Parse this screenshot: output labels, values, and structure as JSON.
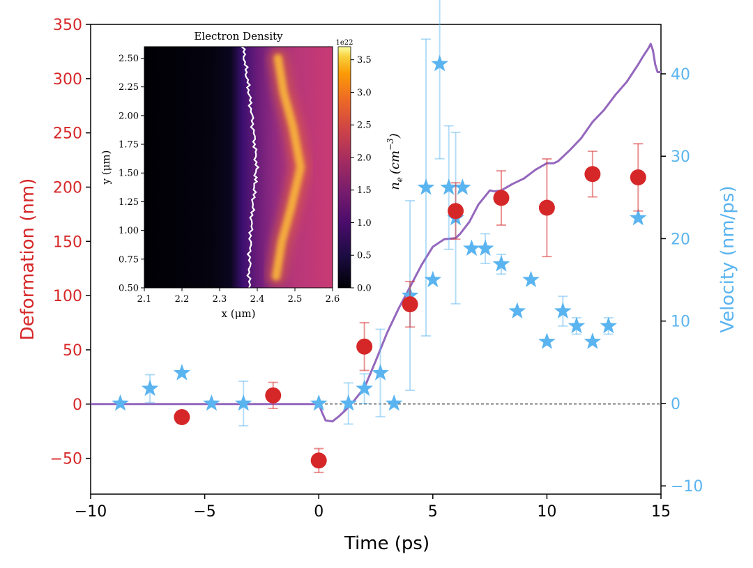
{
  "chart_data": [
    {
      "type": "scatter",
      "xlabel": "Time (ps)",
      "ylabel_left": "Deformation (nm)",
      "ylabel_right": "Velocity (nm/ps)",
      "xlim": [
        -10,
        15
      ],
      "ylim_left": [
        -83,
        350
      ],
      "ylim_right": [
        -11,
        46
      ],
      "x_ticks": [
        -10,
        -5,
        0,
        5,
        10,
        15
      ],
      "y_left_ticks": [
        -50,
        0,
        50,
        100,
        150,
        200,
        250,
        300,
        350
      ],
      "y_right_ticks": [
        -10,
        0,
        10,
        20,
        30,
        40
      ],
      "colors": {
        "deformation": "#d62728",
        "velocity": "#5ab4f0",
        "simulation": "#9467bd",
        "axis_left": "#d62728",
        "axis_right": "#5ab4f0"
      },
      "series": [
        {
          "marker": "circle",
          "axis": "left",
          "points": [
            {
              "x": -6,
              "y": -12,
              "err": 0
            },
            {
              "x": -2,
              "y": 8,
              "err": 12
            },
            {
              "x": 0,
              "y": -52,
              "err": 11
            },
            {
              "x": 2,
              "y": 53,
              "err": 22
            },
            {
              "x": 4,
              "y": 92,
              "err": 21
            },
            {
              "x": 6,
              "y": 178,
              "err": 26
            },
            {
              "x": 8,
              "y": 190,
              "err": 25
            },
            {
              "x": 10,
              "y": 181,
              "err": 45
            },
            {
              "x": 12,
              "y": 212,
              "err": 21
            },
            {
              "x": 14,
              "y": 209,
              "err": 31
            }
          ]
        },
        {
          "marker": "star",
          "axis": "right",
          "points": [
            {
              "x": -8.7,
              "y": 0,
              "err": 0
            },
            {
              "x": -7.4,
              "y": 1.8,
              "err": 1.7
            },
            {
              "x": -6.0,
              "y": 3.7,
              "err": 0
            },
            {
              "x": -4.7,
              "y": 0,
              "err": 0
            },
            {
              "x": -3.3,
              "y": 0,
              "err": 2.7
            },
            {
              "x": 0,
              "y": 0,
              "err": 0
            },
            {
              "x": 1.3,
              "y": 0,
              "err": 2.5
            },
            {
              "x": 2.0,
              "y": 1.8,
              "err": 1.8
            },
            {
              "x": 2.7,
              "y": 3.7,
              "err": 5.3
            },
            {
              "x": 3.3,
              "y": 0,
              "err": 0
            },
            {
              "x": 4.0,
              "y": 13.1,
              "err": 11.5
            },
            {
              "x": 4.7,
              "y": 26.2,
              "err": 18
            },
            {
              "x": 5.0,
              "y": 15.0,
              "err": 0
            },
            {
              "x": 5.3,
              "y": 41.2,
              "err": 11.5
            },
            {
              "x": 5.7,
              "y": 26.2,
              "err": 7.5
            },
            {
              "x": 6.0,
              "y": 22.5,
              "err": 10.4
            },
            {
              "x": 6.3,
              "y": 26.2,
              "err": 0
            },
            {
              "x": 6.7,
              "y": 18.8,
              "err": 0
            },
            {
              "x": 7.3,
              "y": 18.8,
              "err": 1.8
            },
            {
              "x": 8.0,
              "y": 16.9,
              "err": 1.2
            },
            {
              "x": 8.7,
              "y": 11.2,
              "err": 0
            },
            {
              "x": 9.3,
              "y": 15.0,
              "err": 0
            },
            {
              "x": 10.0,
              "y": 7.5,
              "err": 0
            },
            {
              "x": 10.7,
              "y": 11.2,
              "err": 1.8
            },
            {
              "x": 11.3,
              "y": 9.4,
              "err": 1.0
            },
            {
              "x": 12.0,
              "y": 7.5,
              "err": 0
            },
            {
              "x": 12.7,
              "y": 9.4,
              "err": 1.0
            },
            {
              "x": 14.0,
              "y": 22.5,
              "err": 0
            }
          ]
        },
        {
          "marker": "line",
          "axis": "left",
          "points": [
            [
              -10,
              0
            ],
            [
              0,
              0
            ],
            [
              0.15,
              -8
            ],
            [
              0.3,
              -15
            ],
            [
              0.6,
              -16
            ],
            [
              0.9,
              -11
            ],
            [
              1.2,
              -5
            ],
            [
              1.5,
              2
            ],
            [
              2.0,
              15
            ],
            [
              2.5,
              40
            ],
            [
              3.0,
              66
            ],
            [
              3.5,
              88
            ],
            [
              4.0,
              108
            ],
            [
              4.5,
              128
            ],
            [
              5.0,
              145
            ],
            [
              5.5,
              152
            ],
            [
              6.0,
              153
            ],
            [
              6.2,
              157
            ],
            [
              6.6,
              168
            ],
            [
              7.0,
              184
            ],
            [
              7.5,
              197
            ],
            [
              7.7,
              196
            ],
            [
              8.0,
              197
            ],
            [
              8.5,
              203
            ],
            [
              9.0,
              208
            ],
            [
              9.5,
              216
            ],
            [
              10.0,
              222
            ],
            [
              10.3,
              222
            ],
            [
              10.5,
              224
            ],
            [
              11.0,
              234
            ],
            [
              11.5,
              245
            ],
            [
              12.0,
              260
            ],
            [
              12.5,
              271
            ],
            [
              13.0,
              285
            ],
            [
              13.5,
              297
            ],
            [
              14.0,
              313
            ],
            [
              14.2,
              320
            ],
            [
              14.45,
              328
            ],
            [
              14.55,
              332
            ],
            [
              14.65,
              326
            ],
            [
              14.75,
              313
            ],
            [
              14.85,
              306
            ],
            [
              15,
              306
            ]
          ]
        }
      ],
      "reference_line": {
        "y": 0,
        "style": "dashed"
      }
    },
    {
      "type": "heatmap",
      "title": "Electron Density",
      "xlabel": "x (μm)",
      "ylabel": "y (μm)",
      "xlim": [
        2.1,
        2.6
      ],
      "ylim": [
        0.5,
        2.6
      ],
      "x_ticks": [
        "2.1",
        "2.2",
        "2.3",
        "2.4",
        "2.5",
        "2.6"
      ],
      "y_ticks": [
        "0.50",
        "0.75",
        "1.00",
        "1.25",
        "1.50",
        "1.75",
        "2.00",
        "2.25",
        "2.50"
      ],
      "colorbar": {
        "label_main": "n",
        "label_sub": "e",
        "label_unit": "(cm",
        "label_exp": "−3",
        "label_close": ")",
        "scale_text": "1e22",
        "ticks": [
          "0.0",
          "0.5",
          "1.0",
          "1.5",
          "2.0",
          "2.5",
          "3.0",
          "3.5"
        ],
        "range": [
          0,
          3.7
        ],
        "colormap": "inferno"
      },
      "boundary_curve": {
        "color": "#ffffff",
        "points": [
          [
            2.378,
            0.5
          ],
          [
            2.38,
            0.8
          ],
          [
            2.385,
            1.1
          ],
          [
            2.392,
            1.35
          ],
          [
            2.398,
            1.55
          ],
          [
            2.392,
            1.8
          ],
          [
            2.382,
            2.1
          ],
          [
            2.372,
            2.35
          ],
          [
            2.362,
            2.6
          ]
        ]
      },
      "peak_ridge": {
        "points": [
          [
            2.45,
            0.6
          ],
          [
            2.465,
            0.9
          ],
          [
            2.49,
            1.2
          ],
          [
            2.515,
            1.55
          ],
          [
            2.495,
            1.9
          ],
          [
            2.47,
            2.2
          ],
          [
            2.455,
            2.5
          ]
        ]
      }
    }
  ]
}
